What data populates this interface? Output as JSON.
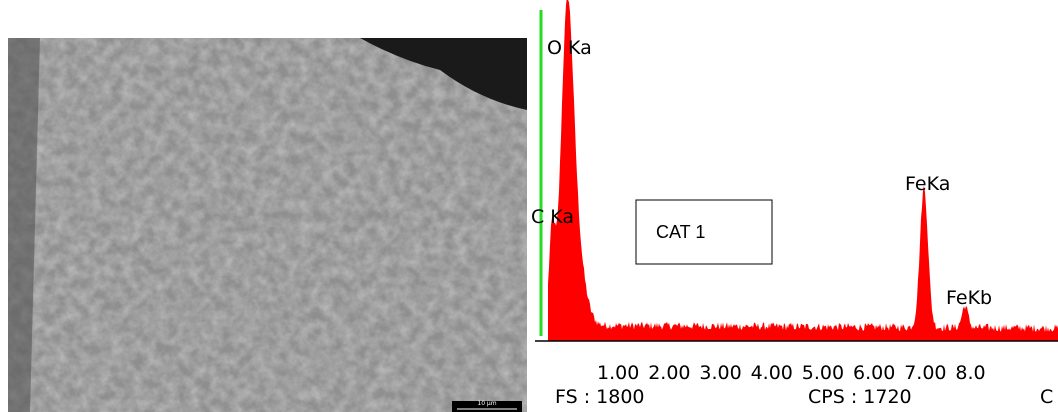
{
  "sem_image": {
    "scale_bar": "10 µm"
  },
  "spectrum": {
    "peak_labels": [
      "O Ka",
      "C Ka",
      "FeKa",
      "FeKb"
    ],
    "x_tick_labels": [
      "1.00",
      "2.00",
      "3.00",
      "4.00",
      "5.00",
      "6.00",
      "7.00",
      "8.0"
    ],
    "full_scale": "FS : 1800",
    "cps": "CPS : 1720",
    "cursor": "C"
  },
  "box_label": "CAT 1"
}
